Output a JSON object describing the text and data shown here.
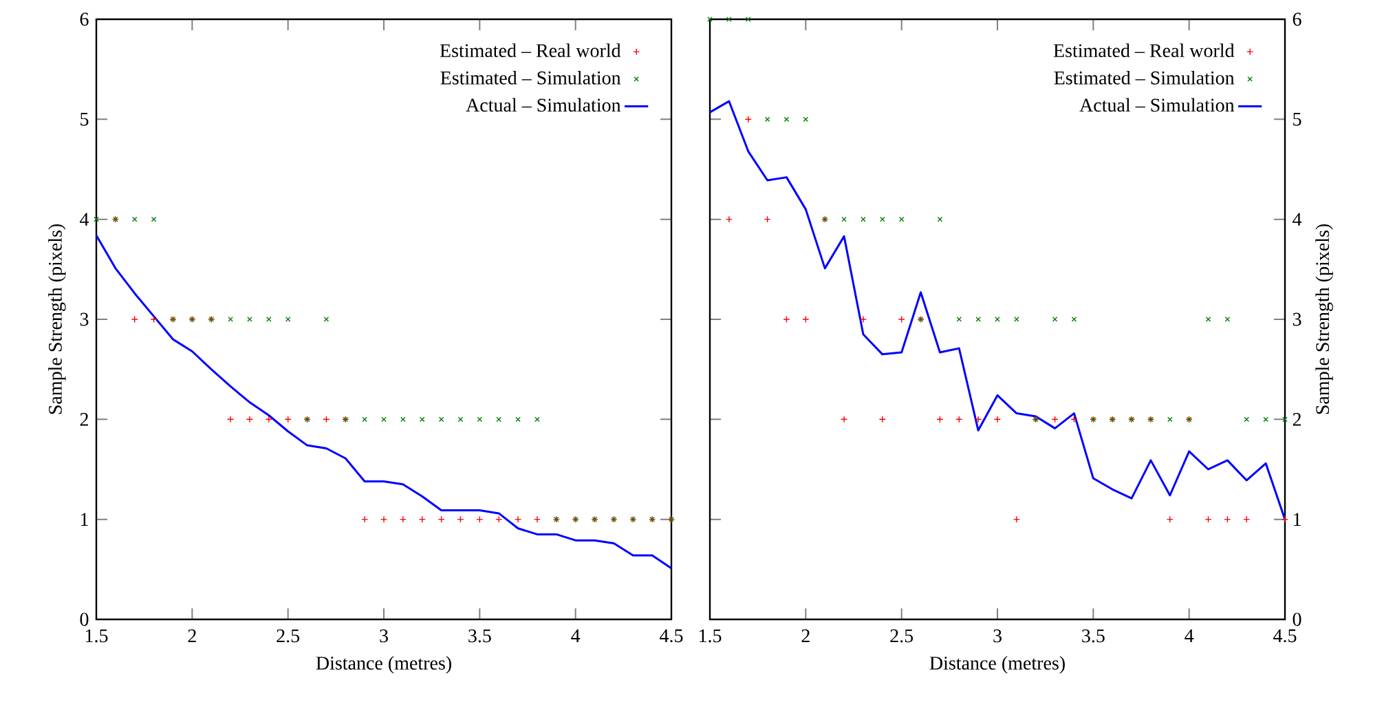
{
  "chart_data": [
    {
      "type": "scatter",
      "xlabel": "Distance (metres)",
      "ylabel": "Sample Strength (pixels)",
      "xlim": [
        1.5,
        4.5
      ],
      "ylim": [
        0,
        6
      ],
      "xticks": [
        1.5,
        2,
        2.5,
        3,
        3.5,
        4,
        4.5
      ],
      "yticks": [
        0,
        1,
        2,
        3,
        4,
        5,
        6
      ],
      "legend": "top right",
      "x": [
        1.5,
        1.6,
        1.7,
        1.8,
        1.9,
        2.0,
        2.1,
        2.2,
        2.3,
        2.4,
        2.5,
        2.6,
        2.7,
        2.8,
        2.9,
        3.0,
        3.1,
        3.2,
        3.3,
        3.4,
        3.5,
        3.6,
        3.7,
        3.8,
        3.9,
        4.0,
        4.1,
        4.2,
        4.3,
        4.4,
        4.5
      ],
      "series": [
        {
          "name": "Estimated – Real world",
          "color": "#ff0000",
          "marker": "plus",
          "values": [
            null,
            4,
            3,
            3,
            3,
            3,
            3,
            2,
            2,
            2,
            2,
            2,
            2,
            2,
            1,
            1,
            1,
            1,
            1,
            1,
            1,
            1,
            1,
            1,
            1,
            1,
            1,
            1,
            1,
            1,
            1
          ]
        },
        {
          "name": "Estimated – Simulation",
          "color": "#008000",
          "marker": "cross",
          "values": [
            4,
            4,
            4,
            4,
            3,
            3,
            3,
            3,
            3,
            3,
            3,
            2,
            3,
            2,
            2,
            2,
            2,
            2,
            2,
            2,
            2,
            2,
            2,
            2,
            1,
            1,
            1,
            1,
            1,
            1,
            1
          ]
        },
        {
          "name": "Actual – Simulation",
          "color": "#0000ff",
          "type": "line",
          "values": [
            3.84,
            3.51,
            3.26,
            3.03,
            2.8,
            2.68,
            2.5,
            2.33,
            2.17,
            2.04,
            1.88,
            1.74,
            1.71,
            1.61,
            1.38,
            1.38,
            1.35,
            1.23,
            1.09,
            1.09,
            1.09,
            1.06,
            0.91,
            0.85,
            0.85,
            0.79,
            0.79,
            0.76,
            0.64,
            0.64,
            0.51
          ]
        }
      ]
    },
    {
      "type": "scatter",
      "xlabel": "Distance (metres)",
      "y2label": "Sample Strength (pixels)",
      "xlim": [
        1.5,
        4.5
      ],
      "y2lim": [
        0,
        6
      ],
      "xticks": [
        1.5,
        2,
        2.5,
        3,
        3.5,
        4,
        4.5
      ],
      "y2ticks": [
        0,
        1,
        2,
        3,
        4,
        5,
        6
      ],
      "legend": "top right",
      "x": [
        1.5,
        1.6,
        1.7,
        1.8,
        1.9,
        2.0,
        2.1,
        2.2,
        2.3,
        2.4,
        2.5,
        2.6,
        2.7,
        2.8,
        2.9,
        3.0,
        3.1,
        3.2,
        3.3,
        3.4,
        3.5,
        3.6,
        3.7,
        3.8,
        3.9,
        4.0,
        4.1,
        4.2,
        4.3,
        4.4,
        4.5
      ],
      "series": [
        {
          "name": "Estimated – Real world",
          "color": "#ff0000",
          "marker": "plus",
          "axis": "y2",
          "values": [
            null,
            4,
            5,
            4,
            3,
            3,
            4,
            2,
            3,
            2,
            3,
            3,
            2,
            2,
            2,
            2,
            1,
            2,
            2,
            2,
            2,
            2,
            2,
            2,
            1,
            2,
            1,
            1,
            1,
            null,
            1
          ]
        },
        {
          "name": "Estimated – Simulation",
          "color": "#008000",
          "marker": "cross",
          "axis": "y2",
          "values": [
            6,
            6,
            6,
            5,
            5,
            5,
            4,
            4,
            4,
            4,
            4,
            3,
            4,
            3,
            3,
            3,
            3,
            2,
            3,
            3,
            2,
            2,
            2,
            2,
            2,
            2,
            3,
            3,
            2,
            2,
            2
          ]
        },
        {
          "name": "Actual – Simulation",
          "color": "#0000ff",
          "type": "line",
          "axis": "y2",
          "values": [
            5.07,
            5.18,
            4.68,
            4.39,
            4.42,
            4.1,
            3.51,
            3.83,
            2.85,
            2.65,
            2.67,
            3.27,
            2.67,
            2.71,
            1.89,
            2.24,
            2.06,
            2.03,
            1.91,
            2.06,
            1.41,
            1.3,
            1.21,
            1.59,
            1.24,
            1.68,
            1.5,
            1.59,
            1.39,
            1.56,
            1.0
          ]
        }
      ]
    }
  ]
}
